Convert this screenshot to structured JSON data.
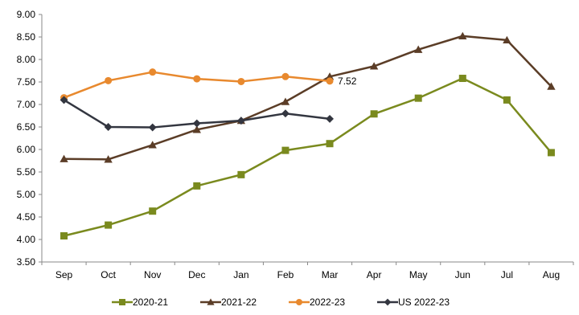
{
  "chart_data": {
    "type": "line",
    "categories": [
      "Sep",
      "Oct",
      "Nov",
      "Dec",
      "Jan",
      "Feb",
      "Mar",
      "Apr",
      "May",
      "Jun",
      "Jul",
      "Aug"
    ],
    "ylim": [
      3.5,
      9.0
    ],
    "ytick_step": 0.5,
    "grid": false,
    "legend_position": "bottom",
    "annotations": [
      {
        "text": "7.52",
        "series": "2022-23",
        "category": "Mar"
      }
    ],
    "series": [
      {
        "name": "2020-21",
        "color": "#7A8A1E",
        "marker": "square",
        "values": [
          4.08,
          4.32,
          4.63,
          5.19,
          5.44,
          5.98,
          6.13,
          6.79,
          7.14,
          7.58,
          7.1,
          5.93
        ]
      },
      {
        "name": "2021-22",
        "color": "#5B3D27",
        "marker": "triangle",
        "values": [
          5.79,
          5.78,
          6.1,
          6.44,
          6.64,
          7.06,
          7.62,
          7.85,
          8.22,
          8.52,
          8.43,
          7.4
        ]
      },
      {
        "name": "2022-23",
        "color": "#E8892E",
        "marker": "circle",
        "values": [
          7.15,
          7.53,
          7.72,
          7.57,
          7.51,
          7.62,
          7.52,
          null,
          null,
          null,
          null,
          null
        ]
      },
      {
        "name": "US 2022-23",
        "color": "#333640",
        "marker": "diamond",
        "values": [
          7.1,
          6.5,
          6.49,
          6.58,
          6.64,
          6.8,
          6.68,
          null,
          null,
          null,
          null,
          null
        ]
      }
    ]
  }
}
